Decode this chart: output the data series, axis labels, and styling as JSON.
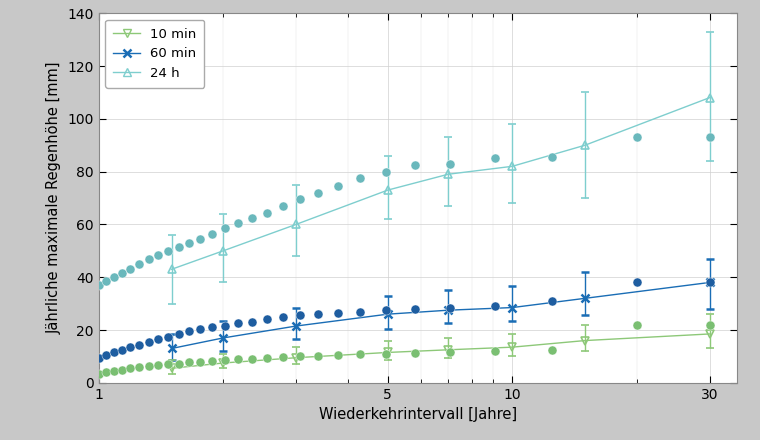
{
  "xlabel": "Wiederkehrintervall [Jahre]",
  "ylabel": "Jährliche maximale Regenhöhe [mm]",
  "ylim": [
    0,
    140
  ],
  "xlim_log": [
    1,
    35
  ],
  "legend_labels": [
    "10 min",
    "60 min",
    "24 h"
  ],
  "color_10min": "#8dc878",
  "color_60min": "#1a6db5",
  "color_24h": "#7ecece",
  "obs_color_24h": "#6ab8bc",
  "obs_color_60min": "#1e5da0",
  "obs_color_10min": "#7abf72",
  "bg_color": "#ffffff",
  "fig_bg": "#c8c8c8",
  "obs_x": [
    1.0,
    1.04,
    1.09,
    1.14,
    1.19,
    1.25,
    1.32,
    1.39,
    1.47,
    1.56,
    1.65,
    1.76,
    1.88,
    2.02,
    2.17,
    2.35,
    2.55,
    2.79,
    3.06,
    3.39,
    3.79,
    4.29,
    4.94,
    5.81,
    7.07,
    9.09,
    12.5,
    20.0,
    30.0
  ],
  "obs_24h": [
    37.0,
    38.5,
    40.0,
    41.5,
    43.0,
    45.0,
    47.0,
    48.5,
    50.0,
    51.5,
    53.0,
    54.5,
    56.5,
    58.5,
    60.5,
    62.5,
    64.5,
    67.0,
    69.5,
    72.0,
    74.5,
    77.5,
    80.0,
    82.5,
    83.0,
    85.0,
    85.5,
    93.0,
    93.0
  ],
  "obs_60min": [
    9.5,
    10.5,
    11.5,
    12.5,
    13.5,
    14.5,
    15.5,
    16.5,
    17.5,
    18.5,
    19.5,
    20.5,
    21.0,
    21.5,
    22.5,
    23.0,
    24.0,
    25.0,
    25.5,
    26.0,
    26.5,
    27.0,
    27.5,
    27.8,
    28.5,
    29.0,
    31.0,
    38.0,
    38.0
  ],
  "obs_10min": [
    3.5,
    4.0,
    4.5,
    5.0,
    5.5,
    5.8,
    6.2,
    6.6,
    7.0,
    7.3,
    7.7,
    8.0,
    8.3,
    8.6,
    8.9,
    9.2,
    9.5,
    9.8,
    10.0,
    10.2,
    10.5,
    10.8,
    11.0,
    11.2,
    11.5,
    12.0,
    12.5,
    22.0,
    22.0
  ],
  "sim_x": [
    1.5,
    2.0,
    3.0,
    5.0,
    7.0,
    10.0,
    15.0,
    30.0
  ],
  "sim_24h_mean": [
    43.0,
    50.0,
    60.0,
    73.0,
    79.0,
    82.0,
    90.0,
    108.0
  ],
  "sim_24h_lo": [
    30.0,
    38.0,
    48.0,
    62.0,
    67.0,
    68.0,
    70.0,
    84.0
  ],
  "sim_24h_hi": [
    56.0,
    64.0,
    75.0,
    86.0,
    93.0,
    98.0,
    110.0,
    133.0
  ],
  "sim_60min_mean": [
    13.0,
    17.0,
    21.5,
    26.0,
    27.5,
    28.5,
    32.0,
    38.0
  ],
  "sim_60min_lo": [
    8.5,
    12.0,
    16.5,
    20.5,
    22.5,
    23.5,
    25.5,
    28.0
  ],
  "sim_60min_hi": [
    18.5,
    23.5,
    28.5,
    33.0,
    35.0,
    36.5,
    42.0,
    47.0
  ],
  "sim_10min_mean": [
    5.5,
    7.5,
    9.5,
    11.5,
    12.5,
    13.5,
    16.0,
    18.5
  ],
  "sim_10min_lo": [
    3.5,
    5.5,
    7.0,
    8.5,
    9.5,
    10.0,
    12.0,
    13.0
  ],
  "sim_10min_hi": [
    8.5,
    11.0,
    13.5,
    16.0,
    17.0,
    18.5,
    22.0,
    26.0
  ]
}
